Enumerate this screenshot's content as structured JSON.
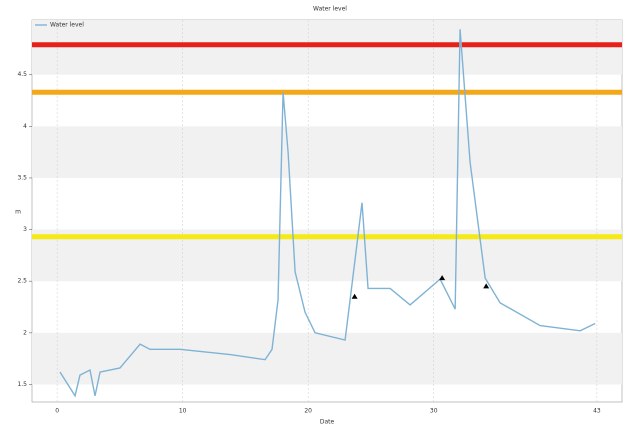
{
  "chart_data": {
    "type": "line",
    "title": "Water level",
    "x_label": "Date",
    "y_label": "m",
    "xlim": [
      -2,
      45
    ],
    "xticks": [
      0,
      10,
      20,
      30,
      43
    ],
    "ylim": [
      1.33,
      5.03
    ],
    "yticks": [
      1.5,
      2,
      2.5,
      3,
      3.5,
      4,
      4.5
    ],
    "bands": true,
    "legend": "top-left",
    "series": [
      {
        "name": "Water level",
        "color": "#7fb3d5",
        "x": [
          0.23,
          1.43,
          1.82,
          2.62,
          3.02,
          3.42,
          5.01,
          6.61,
          7.4,
          9.79,
          13.78,
          16.57,
          17.12,
          17.6,
          18.0,
          18.4,
          18.96,
          19.75,
          20.55,
          22.94,
          23.34,
          24.29,
          24.77,
          26.53,
          28.12,
          30.51,
          31.71,
          32.1,
          32.9,
          34.1,
          35.29,
          38.48,
          41.67,
          42.86
        ],
        "values": [
          1.62,
          1.39,
          1.59,
          1.64,
          1.39,
          1.62,
          1.66,
          1.89,
          1.84,
          1.84,
          1.79,
          1.74,
          1.84,
          2.32,
          4.33,
          3.75,
          2.59,
          2.2,
          2.0,
          1.93,
          2.32,
          3.26,
          2.43,
          2.43,
          2.27,
          2.52,
          2.23,
          4.94,
          3.65,
          2.53,
          2.29,
          2.07,
          2.02,
          2.09
        ]
      }
    ],
    "markers": {
      "color": "#000",
      "x": [
        23.7,
        30.67,
        34.18
      ],
      "values": [
        2.35,
        2.53,
        2.45
      ]
    },
    "thresholds": [
      {
        "value": 4.79,
        "color": "#e8201a"
      },
      {
        "value": 4.33,
        "color": "#f2a818"
      },
      {
        "value": 2.93,
        "color": "#f5ea14"
      }
    ]
  }
}
